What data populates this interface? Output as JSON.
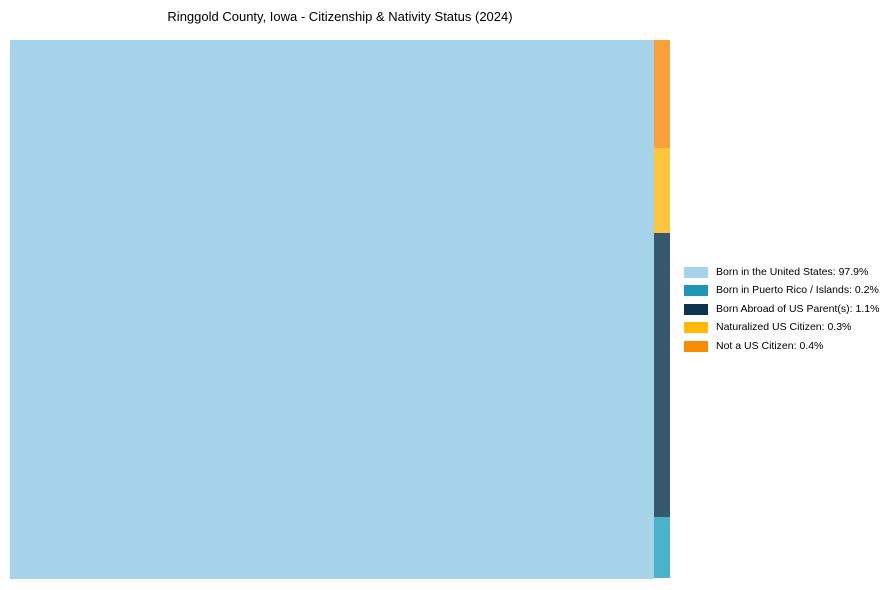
{
  "page": {
    "background_color": "#ffffff"
  },
  "chart_data": {
    "type": "treemap",
    "title": "Ringgold County, Iowa - Citizenship & Nativity Status (2024)",
    "unit": "%",
    "grid": false,
    "legend_position": "right-center",
    "items": [
      {
        "key": "born_us",
        "label": "Born in the United States",
        "value": 97.9,
        "legend_label": "Born in the United States: 97.9%",
        "fill": "#A6D3E9",
        "legend_color": "#A6D3E9"
      },
      {
        "key": "puerto_rico",
        "label": "Born in Puerto Rico / Islands",
        "value": 0.2,
        "legend_label": "Born in Puerto Rico / Islands: 0.2%",
        "fill": "#4BB3C9",
        "legend_color": "#2196B4"
      },
      {
        "key": "born_abroad",
        "label": "Born Abroad of US Parent(s)",
        "value": 1.1,
        "legend_label": "Born Abroad of US Parent(s): 1.1%",
        "fill": "#35586E",
        "legend_color": "#0D344E"
      },
      {
        "key": "naturalized",
        "label": "Naturalized US Citizen",
        "value": 0.3,
        "legend_label": "Naturalized US Citizen: 0.3%",
        "fill": "#FDC63E",
        "legend_color": "#FFB90A"
      },
      {
        "key": "not_citizen",
        "label": "Not a US Citizen",
        "value": 0.4,
        "legend_label": "Not a US Citizen: 0.4%",
        "fill": "#F9A13C",
        "legend_color": "#F78B05"
      }
    ],
    "layout": {
      "main_rect_key": "born_us",
      "main_width_fraction": 0.9765,
      "strip": {
        "order": [
          "not_citizen",
          "naturalized",
          "born_abroad",
          "puerto_rico"
        ],
        "height_fractions": [
          0.2006,
          0.1578,
          0.5265,
          0.1151
        ]
      }
    }
  }
}
